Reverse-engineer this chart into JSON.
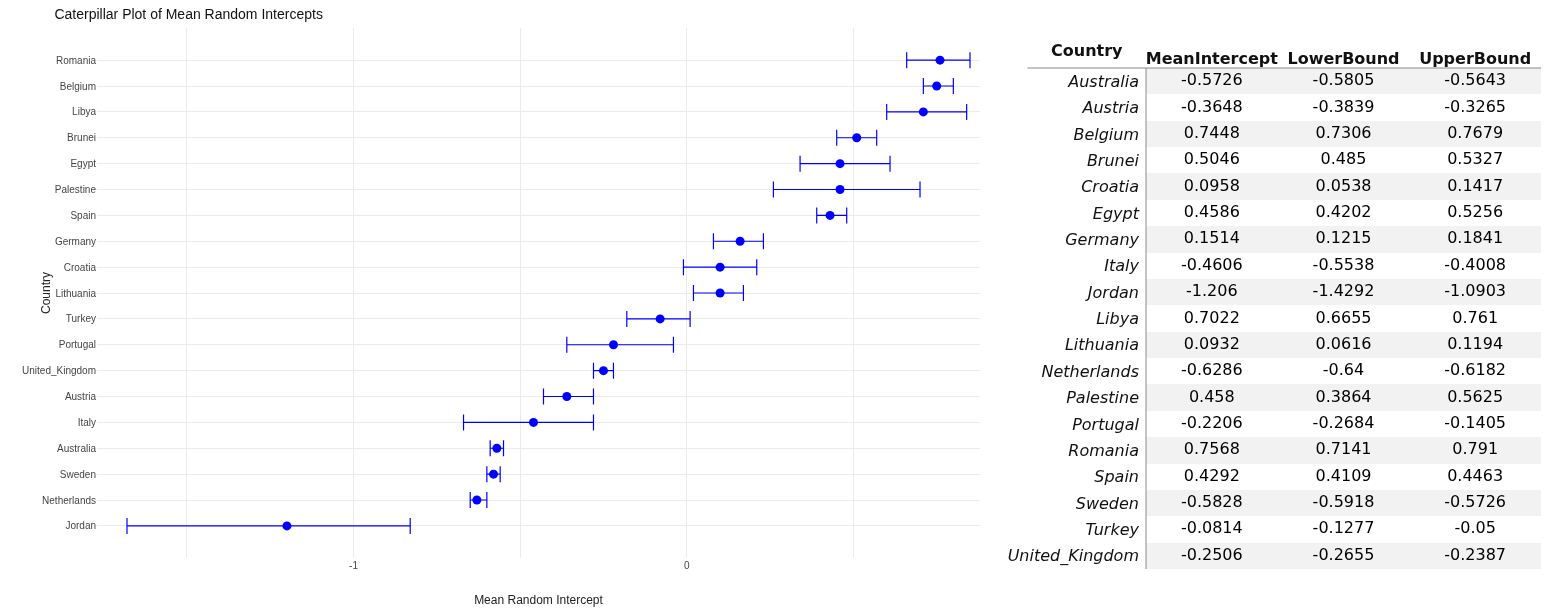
{
  "chart_data": [
    {
      "type": "scatter",
      "orientation": "horizontal",
      "title": "Caterpillar Plot of Mean Random Intercepts",
      "xlabel": "Mean Random Intercept",
      "ylabel": "Country",
      "categories": [
        "Romania",
        "Belgium",
        "Libya",
        "Brunei",
        "Egypt",
        "Palestine",
        "Spain",
        "Germany",
        "Croatia",
        "Lithuania",
        "Turkey",
        "Portugal",
        "United_Kingdom",
        "Austria",
        "Italy",
        "Australia",
        "Sweden",
        "Netherlands",
        "Jordan"
      ],
      "series": [
        {
          "color": "#0000ff",
          "values": [
            0.76,
            0.75,
            0.71,
            0.51,
            0.46,
            0.46,
            0.43,
            0.16,
            0.1,
            0.1,
            -0.08,
            -0.22,
            -0.25,
            -0.36,
            -0.46,
            -0.57,
            -0.58,
            -0.63,
            -1.2
          ],
          "errors": [
            [
              0.66,
              0.85
            ],
            [
              0.71,
              0.8
            ],
            [
              0.6,
              0.84
            ],
            [
              0.45,
              0.57
            ],
            [
              0.34,
              0.61
            ],
            [
              0.26,
              0.7
            ],
            [
              0.39,
              0.48
            ],
            [
              0.08,
              0.23
            ],
            [
              -0.01,
              0.21
            ],
            [
              0.02,
              0.17
            ],
            [
              -0.18,
              0.01
            ],
            [
              -0.36,
              -0.04
            ],
            [
              -0.28,
              -0.22
            ],
            [
              -0.43,
              -0.28
            ],
            [
              -0.67,
              -0.28
            ],
            [
              -0.59,
              -0.55
            ],
            [
              -0.6,
              -0.56
            ],
            [
              -0.65,
              -0.6
            ],
            [
              -1.68,
              -0.83
            ]
          ]
        }
      ],
      "xlim": [
        -1.77,
        0.88
      ],
      "xticks": [
        {
          "value": -1.5,
          "label": null
        },
        -1,
        {
          "value": -0.5,
          "label": null
        },
        0,
        {
          "value": 0.5,
          "label": null
        }
      ],
      "grid": true,
      "marker": "circle"
    },
    {
      "type": "other",
      "ylabel": "Country",
      "data_labels": true,
      "categories": [
        "Australia",
        "Austria",
        "Belgium",
        "Brunei",
        "Croatia",
        "Egypt",
        "Germany",
        "Italy",
        "Jordan",
        "Libya",
        "Lithuania",
        "Netherlands",
        "Palestine",
        "Portugal",
        "Romania",
        "Spain",
        "Sweden",
        "Turkey",
        "United_Kingdom"
      ],
      "series": [
        {
          "name": "MeanIntercept",
          "color": "#000000",
          "values": [
            -0.5726,
            -0.3648,
            0.7448,
            0.5046,
            0.0958,
            0.4586,
            0.1514,
            -0.4606,
            -1.206,
            0.7022,
            0.0932,
            -0.6286,
            0.458,
            -0.2206,
            0.7568,
            0.4292,
            -0.5828,
            -0.0814,
            -0.2506
          ]
        },
        {
          "name": "LowerBound",
          "color": "#000000",
          "values": [
            -0.5805,
            -0.3839,
            0.7306,
            0.485,
            0.0538,
            0.4202,
            0.1215,
            -0.5538,
            -1.4292,
            0.6655,
            0.0616,
            -0.64,
            0.3864,
            -0.2684,
            0.7141,
            0.4109,
            -0.5918,
            -0.1277,
            -0.2655
          ]
        },
        {
          "name": "UpperBound",
          "color": "#000000",
          "values": [
            -0.5643,
            -0.3265,
            0.7679,
            0.5327,
            0.1417,
            0.5256,
            0.1841,
            -0.4008,
            -1.0903,
            0.761,
            0.1194,
            -0.6182,
            0.5625,
            -0.1405,
            0.791,
            0.4463,
            -0.5726,
            -0.05,
            -0.2387
          ]
        }
      ]
    }
  ]
}
